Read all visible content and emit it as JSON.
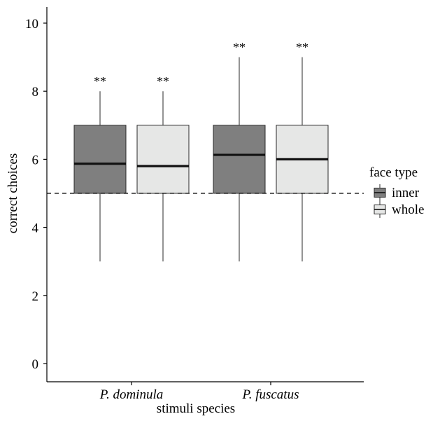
{
  "chart_data": {
    "type": "boxplot",
    "xlabel": "stimuli species",
    "ylabel": "correct choices",
    "ylim": [
      0,
      10.3
    ],
    "yticks": [
      0,
      2,
      4,
      6,
      8,
      10
    ],
    "reference_line": 5,
    "categories": [
      "P. dominula",
      "P. fuscatus"
    ],
    "legend": {
      "title": "face type",
      "position": "right",
      "entries": [
        {
          "name": "inner",
          "color": "#7f7f7f"
        },
        {
          "name": "whole",
          "color": "#e6e7e6"
        }
      ]
    },
    "series": [
      {
        "name": "inner",
        "color": "#7f7f7f",
        "boxes": [
          {
            "category": "P. dominula",
            "whisker_low": 3,
            "q1": 5,
            "median": 5.87,
            "q3": 7,
            "whisker_high": 8,
            "significance": "**"
          },
          {
            "category": "P. fuscatus",
            "whisker_low": 3,
            "q1": 5,
            "median": 6.13,
            "q3": 7,
            "whisker_high": 9,
            "significance": "**"
          }
        ]
      },
      {
        "name": "whole",
        "color": "#e6e7e6",
        "boxes": [
          {
            "category": "P. dominula",
            "whisker_low": 3,
            "q1": 5,
            "median": 5.8,
            "q3": 7,
            "whisker_high": 8,
            "significance": "**"
          },
          {
            "category": "P. fuscatus",
            "whisker_low": 3,
            "q1": 5,
            "median": 6.0,
            "q3": 7,
            "whisker_high": 9,
            "significance": "**"
          }
        ]
      }
    ]
  }
}
